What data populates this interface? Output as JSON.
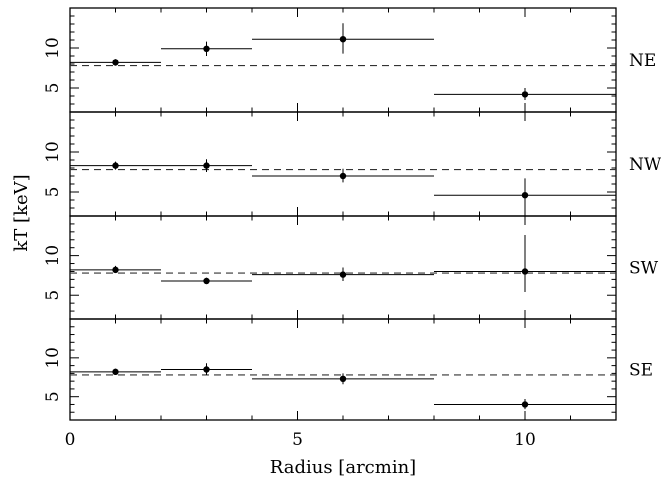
{
  "chart_data": {
    "type": "scatter",
    "xlabel": "Radius [arcmin]",
    "ylabel": "kT [keV]",
    "xlim": [
      0,
      12
    ],
    "ylim": [
      2,
      15
    ],
    "x_ticks": [
      0,
      5,
      10
    ],
    "y_ticks": [
      5,
      10
    ],
    "grid": false,
    "mean_kT": 7.8,
    "panels": [
      {
        "label": "NE",
        "bins": [
          {
            "x": 1,
            "x_lo": 0,
            "x_hi": 2,
            "y": 8.2,
            "y_lo": 7.8,
            "y_hi": 8.6
          },
          {
            "x": 3,
            "x_lo": 2,
            "x_hi": 4,
            "y": 9.9,
            "y_lo": 9.0,
            "y_hi": 10.8
          },
          {
            "x": 6,
            "x_lo": 4,
            "x_hi": 8,
            "y": 11.1,
            "y_lo": 9.3,
            "y_hi": 13.1
          },
          {
            "x": 10,
            "x_lo": 8,
            "x_hi": 12,
            "y": 4.2,
            "y_lo": 3.5,
            "y_hi": 5.0
          }
        ]
      },
      {
        "label": "NW",
        "bins": [
          {
            "x": 1,
            "x_lo": 0,
            "x_hi": 2,
            "y": 8.3,
            "y_lo": 7.8,
            "y_hi": 8.8
          },
          {
            "x": 3,
            "x_lo": 2,
            "x_hi": 4,
            "y": 8.3,
            "y_lo": 7.5,
            "y_hi": 9.1
          },
          {
            "x": 6,
            "x_lo": 4,
            "x_hi": 8,
            "y": 7.0,
            "y_lo": 6.2,
            "y_hi": 7.9
          },
          {
            "x": 10,
            "x_lo": 8,
            "x_hi": 12,
            "y": 4.6,
            "y_lo": 3.0,
            "y_hi": 6.7
          }
        ]
      },
      {
        "label": "SW",
        "bins": [
          {
            "x": 1,
            "x_lo": 0,
            "x_hi": 2,
            "y": 8.2,
            "y_lo": 7.8,
            "y_hi": 8.7
          },
          {
            "x": 3,
            "x_lo": 2,
            "x_hi": 4,
            "y": 6.8,
            "y_lo": 6.4,
            "y_hi": 7.2
          },
          {
            "x": 6,
            "x_lo": 4,
            "x_hi": 8,
            "y": 7.6,
            "y_lo": 6.8,
            "y_hi": 8.5
          },
          {
            "x": 10,
            "x_lo": 8,
            "x_hi": 12,
            "y": 8.0,
            "y_lo": 5.4,
            "y_hi": 12.6
          }
        ]
      },
      {
        "label": "SE",
        "bins": [
          {
            "x": 1,
            "x_lo": 0,
            "x_hi": 2,
            "y": 8.2,
            "y_lo": 7.8,
            "y_hi": 8.6
          },
          {
            "x": 3,
            "x_lo": 2,
            "x_hi": 4,
            "y": 8.5,
            "y_lo": 7.8,
            "y_hi": 9.3
          },
          {
            "x": 6,
            "x_lo": 4,
            "x_hi": 8,
            "y": 7.3,
            "y_lo": 6.6,
            "y_hi": 8.0
          },
          {
            "x": 10,
            "x_lo": 8,
            "x_hi": 12,
            "y": 4.0,
            "y_lo": 3.4,
            "y_hi": 4.7
          }
        ]
      }
    ]
  }
}
